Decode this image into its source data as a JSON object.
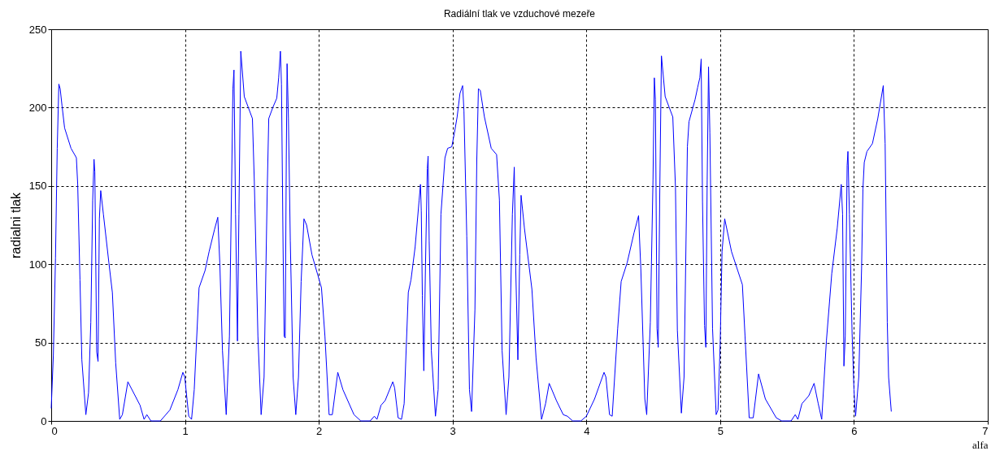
{
  "chart_data": {
    "type": "line",
    "title": "Radiální tlak ve vzduchové mezeře",
    "xlabel": "alfa",
    "ylabel": "radialni tlak",
    "xlim": [
      0,
      7
    ],
    "xticks": [
      0,
      1,
      2,
      3,
      4,
      5,
      6,
      7
    ],
    "ylim": [
      0,
      250
    ],
    "yticks": [
      0,
      50,
      100,
      150,
      200,
      250
    ],
    "grid": true,
    "legend": false,
    "marker": "none",
    "line_style": "solid",
    "series": [
      {
        "color": "#0000ff",
        "x": [
          0,
          0.016,
          0.032,
          0.04,
          0.045,
          0.057,
          0.067,
          0.081,
          0.1,
          0.148,
          0.188,
          0.198,
          0.215,
          0.229,
          0.259,
          0.279,
          0.296,
          0.31,
          0.32,
          0.326,
          0.34,
          0.35,
          0.36,
          0.37,
          0.39,
          0.431,
          0.457,
          0.482,
          0.512,
          0.532,
          0.573,
          0.664,
          0.694,
          0.715,
          0.745,
          0.816,
          0.887,
          0.947,
          0.984,
          0.998,
          1.028,
          1.049,
          1.069,
          1.105,
          1.15,
          1.18,
          1.22,
          1.245,
          1.26,
          1.28,
          1.308,
          1.332,
          1.348,
          1.358,
          1.366,
          1.378,
          1.392,
          1.403,
          1.417,
          1.443,
          1.504,
          1.518,
          1.545,
          1.569,
          1.591,
          1.615,
          1.626,
          1.656,
          1.686,
          1.7,
          1.713,
          1.721,
          1.733,
          1.741,
          1.749,
          1.757,
          1.763,
          1.773,
          1.787,
          1.808,
          1.828,
          1.848,
          1.868,
          1.889,
          1.909,
          1.949,
          2.02,
          2.046,
          2.077,
          2.101,
          2.142,
          2.18,
          2.263,
          2.314,
          2.384,
          2.415,
          2.435,
          2.465,
          2.496,
          2.553,
          2.567,
          2.593,
          2.618,
          2.638,
          2.669,
          2.689,
          2.72,
          2.75,
          2.76,
          2.766,
          2.774,
          2.785,
          2.797,
          2.811,
          2.817,
          2.825,
          2.841,
          2.872,
          2.892,
          2.913,
          2.943,
          2.963,
          2.994,
          3.014,
          3.034,
          3.055,
          3.075,
          3.085,
          3.106,
          3.126,
          3.142,
          3.167,
          3.181,
          3.193,
          3.207,
          3.238,
          3.289,
          3.329,
          3.35,
          3.37,
          3.4,
          3.421,
          3.447,
          3.461,
          3.472,
          3.488,
          3.502,
          3.512,
          3.537,
          3.593,
          3.624,
          3.665,
          3.695,
          3.722,
          3.776,
          3.827,
          3.858,
          3.898,
          3.959,
          4.0,
          4.061,
          4.132,
          4.146,
          4.173,
          4.193,
          4.234,
          4.26,
          4.305,
          4.356,
          4.39,
          4.407,
          4.437,
          4.451,
          4.478,
          4.498,
          4.508,
          4.516,
          4.528,
          4.537,
          4.549,
          4.561,
          4.589,
          4.646,
          4.666,
          4.68,
          4.71,
          4.73,
          4.755,
          4.767,
          4.812,
          4.832,
          4.848,
          4.858,
          4.868,
          4.883,
          4.893,
          4.903,
          4.913,
          4.923,
          4.943,
          4.97,
          4.984,
          5.0,
          5.014,
          5.034,
          5.085,
          5.166,
          5.186,
          5.217,
          5.247,
          5.287,
          5.338,
          5.419,
          5.46,
          5.53,
          5.561,
          5.581,
          5.611,
          5.662,
          5.702,
          5.733,
          5.759,
          5.794,
          5.834,
          5.875,
          5.905,
          5.915,
          5.925,
          5.935,
          5.949,
          5.955,
          5.966,
          5.986,
          6.0,
          6.012,
          6.036,
          6.057,
          6.067,
          6.077,
          6.097,
          6.138,
          6.178,
          6.219,
          6.233,
          6.249,
          6.259,
          6.279
        ],
        "values": [
          8,
          42,
          104,
          148,
          174,
          215,
          212,
          201,
          187,
          174,
          168,
          151,
          90,
          39,
          4,
          18,
          63,
          141,
          167,
          159,
          44,
          38,
          129,
          147,
          132,
          101,
          82,
          37,
          1,
          4,
          25,
          10,
          1,
          4,
          0,
          0,
          7,
          20,
          31,
          28,
          3,
          1,
          20,
          85,
          96,
          108,
          122,
          130,
          101,
          45,
          4,
          54,
          149,
          212,
          224,
          132,
          51,
          132,
          236,
          207,
          193,
          153,
          54,
          4,
          28,
          149,
          193,
          200,
          206,
          219,
          236,
          215,
          111,
          54,
          53,
          167,
          228,
          193,
          115,
          28,
          4,
          28,
          89,
          129,
          125,
          106,
          85,
          54,
          4,
          4,
          31,
          20,
          4,
          0,
          0,
          3,
          1,
          10,
          13,
          25,
          21,
          2,
          1,
          11,
          82,
          90,
          111,
          141,
          151,
          134,
          80,
          32,
          97,
          161,
          169,
          115,
          45,
          3,
          20,
          132,
          168,
          174,
          175,
          184,
          194,
          209,
          214,
          198,
          118,
          20,
          6,
          71,
          167,
          212,
          211,
          194,
          174,
          170,
          141,
          45,
          4,
          28,
          132,
          162,
          97,
          39,
          106,
          144,
          123,
          84,
          40,
          1,
          11,
          24,
          13,
          4,
          3,
          0,
          0,
          3,
          14,
          31,
          28,
          4,
          3,
          59,
          89,
          101,
          120,
          131,
          97,
          14,
          4,
          63,
          154,
          219,
          205,
          59,
          47,
          149,
          233,
          207,
          194,
          149,
          58,
          5,
          28,
          175,
          191,
          205,
          213,
          219,
          231,
          140,
          61,
          47,
          154,
          226,
          184,
          59,
          4,
          7,
          49,
          108,
          129,
          108,
          87,
          54,
          2,
          2,
          30,
          14,
          2,
          0,
          0,
          4,
          1,
          11,
          16,
          24,
          11,
          1,
          51,
          94,
          123,
          151,
          132,
          35,
          54,
          163,
          172,
          132,
          56,
          20,
          3,
          28,
          97,
          148,
          165,
          172,
          177,
          193,
          214,
          177,
          63,
          28,
          6
        ]
      }
    ]
  }
}
